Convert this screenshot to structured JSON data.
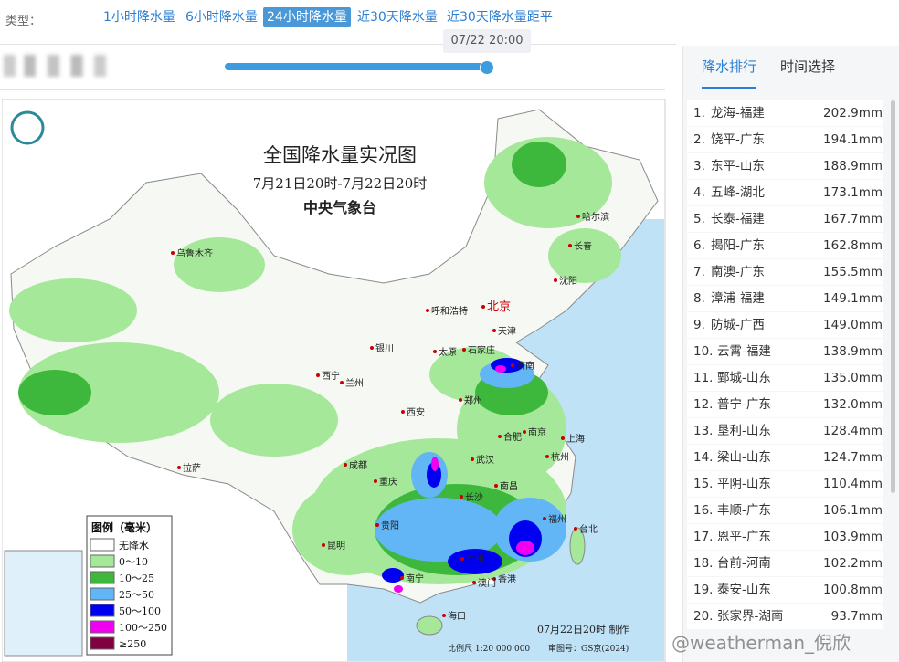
{
  "type_label": "类型：",
  "tabs": [
    "1小时降水量",
    "6小时降水量",
    "24小时降水量",
    "近30天降水量",
    "近30天降水量距平"
  ],
  "active_tab": 2,
  "slider_time": "07/22 20:00",
  "map": {
    "title": "全国降水量实况图",
    "subtitle": "7月21日20时-7月22日20时",
    "agency": "中央气象台",
    "legend_title": "图例（毫米）",
    "legend": [
      {
        "label": "无降水",
        "color": "#ffffff"
      },
      {
        "label": "0～10",
        "color": "#a6e89a"
      },
      {
        "label": "10～25",
        "color": "#3db83d"
      },
      {
        "label": "25～50",
        "color": "#62b6f5"
      },
      {
        "label": "50～100",
        "color": "#0000f0"
      },
      {
        "label": "100～250",
        "color": "#f000f0"
      },
      {
        "label": "≥250",
        "color": "#800040"
      }
    ],
    "cities": [
      "哈尔滨",
      "长春",
      "沈阳",
      "乌鲁木齐",
      "呼和浩特",
      "北京",
      "天津",
      "石家庄",
      "太原",
      "银川",
      "西宁",
      "兰州",
      "济南",
      "郑州",
      "西安",
      "南京",
      "上海",
      "合肥",
      "杭州",
      "武汉",
      "成都",
      "重庆",
      "长沙",
      "南昌",
      "福州",
      "拉萨",
      "贵阳",
      "昆明",
      "南宁",
      "广州",
      "香港",
      "澳门",
      "海口",
      "台北"
    ],
    "made": "07月22日20时 制作",
    "scale": "比例尺 1:20 000 000",
    "approval": "审图号：GS京(2024)"
  },
  "panel": {
    "tabs": [
      "降水排行",
      "时间选择"
    ],
    "active_tab": 0,
    "ranking": [
      [
        "1.",
        "龙海-福建",
        "202.9mm"
      ],
      [
        "2.",
        "饶平-广东",
        "194.1mm"
      ],
      [
        "3.",
        "东平-山东",
        "188.9mm"
      ],
      [
        "4.",
        "五峰-湖北",
        "173.1mm"
      ],
      [
        "5.",
        "长泰-福建",
        "167.7mm"
      ],
      [
        "6.",
        "揭阳-广东",
        "162.8mm"
      ],
      [
        "7.",
        "南澳-广东",
        "155.5mm"
      ],
      [
        "8.",
        "漳浦-福建",
        "149.1mm"
      ],
      [
        "9.",
        "防城-广西",
        "149.0mm"
      ],
      [
        "10.",
        "云霄-福建",
        "138.9mm"
      ],
      [
        "11.",
        "鄄城-山东",
        "135.0mm"
      ],
      [
        "12.",
        "普宁-广东",
        "132.0mm"
      ],
      [
        "13.",
        "垦利-山东",
        "128.4mm"
      ],
      [
        "14.",
        "梁山-山东",
        "124.7mm"
      ],
      [
        "15.",
        "平阴-山东",
        "110.4mm"
      ],
      [
        "16.",
        "丰顺-广东",
        "106.1mm"
      ],
      [
        "17.",
        "恩平-广东",
        "103.9mm"
      ],
      [
        "18.",
        "台前-河南",
        "102.2mm"
      ],
      [
        "19.",
        "泰安-山东",
        "100.8mm"
      ],
      [
        "20.",
        "张家界-湖南",
        "93.7mm"
      ]
    ]
  },
  "watermark": "@weatherman_倪欣"
}
